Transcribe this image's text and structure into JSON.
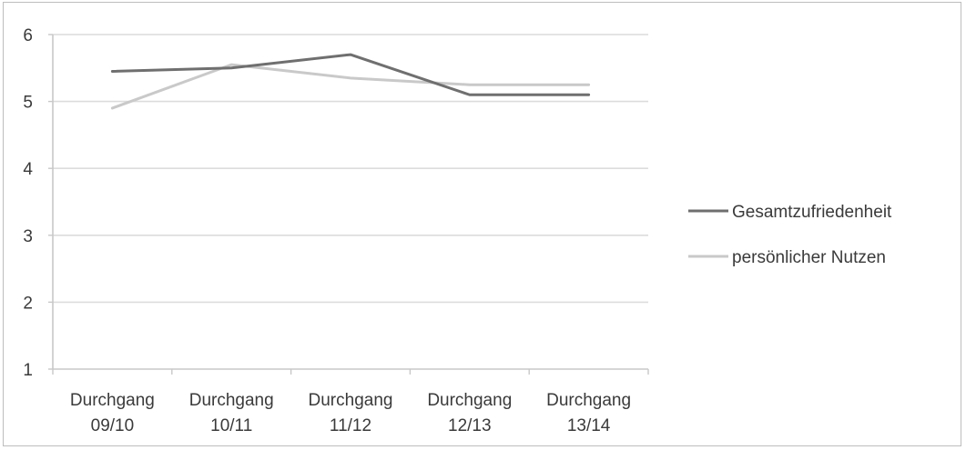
{
  "chart_data": {
    "type": "line",
    "title": "",
    "xlabel": "",
    "ylabel": "",
    "categories": [
      [
        "Durchgang",
        "09/10"
      ],
      [
        "Durchgang",
        "10/11"
      ],
      [
        "Durchgang",
        "11/12"
      ],
      [
        "Durchgang",
        "12/13"
      ],
      [
        "Durchgang",
        "13/14"
      ]
    ],
    "ylim": [
      1,
      6
    ],
    "yticks": [
      1,
      2,
      3,
      4,
      5,
      6
    ],
    "grid": true,
    "legend_position": "right",
    "series": [
      {
        "name": "Gesamtzufriedenheit",
        "color": "#6f6f6f",
        "values": [
          5.45,
          5.5,
          5.7,
          5.1,
          5.1
        ]
      },
      {
        "name": "persönlicher Nutzen",
        "color": "#c9c9c9",
        "values": [
          4.9,
          5.55,
          5.35,
          5.25,
          5.25
        ]
      }
    ]
  }
}
